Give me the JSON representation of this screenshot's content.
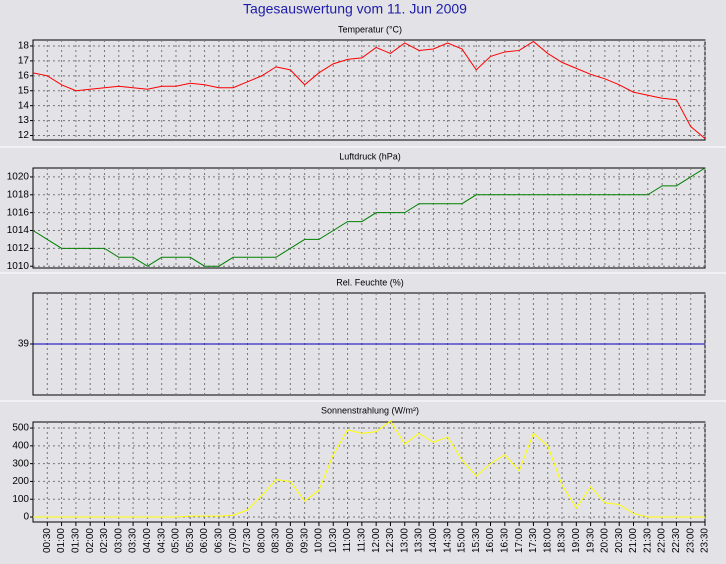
{
  "title": "Tagesauswertung vom 11. Jun 2009",
  "chart_data": [
    {
      "type": "line",
      "title": "Temperatur (°C)",
      "color": "#ff0000",
      "ylim": [
        11.7,
        18.4
      ],
      "yticks": [
        12,
        13,
        14,
        15,
        16,
        17,
        18
      ],
      "grid": true,
      "values": [
        16.2,
        16.0,
        15.4,
        15.0,
        15.1,
        15.2,
        15.3,
        15.2,
        15.1,
        15.3,
        15.3,
        15.5,
        15.4,
        15.2,
        15.2,
        15.6,
        16.0,
        16.6,
        16.4,
        15.4,
        16.2,
        16.8,
        17.1,
        17.2,
        17.9,
        17.5,
        18.2,
        17.7,
        17.8,
        18.2,
        17.8,
        16.4,
        17.3,
        17.6,
        17.7,
        18.3,
        17.5,
        16.9,
        16.5,
        16.1,
        15.8,
        15.4,
        14.9,
        14.7,
        14.5,
        14.4,
        12.6,
        11.8
      ]
    },
    {
      "type": "line",
      "title": "Luftdruck (hPa)",
      "color": "#008000",
      "ylim": [
        1009.8,
        1021
      ],
      "yticks": [
        1010,
        1012,
        1014,
        1016,
        1018,
        1020
      ],
      "grid": true,
      "values": [
        1014,
        1013,
        1012,
        1012,
        1012,
        1012,
        1011,
        1011,
        1010,
        1011,
        1011,
        1011,
        1010,
        1010,
        1011,
        1011,
        1011,
        1011,
        1012,
        1013,
        1013,
        1014,
        1015,
        1015,
        1016,
        1016,
        1016,
        1017,
        1017,
        1017,
        1017,
        1018,
        1018,
        1018,
        1018,
        1018,
        1018,
        1018,
        1018,
        1018,
        1018,
        1018,
        1018,
        1018,
        1019,
        1019,
        1020,
        1021
      ]
    },
    {
      "type": "line",
      "title": "Rel. Feuchte (%)",
      "color": "#0000c0",
      "ylim": [
        34,
        44
      ],
      "yticks": [
        39
      ],
      "grid": true,
      "values": [
        39,
        39,
        39,
        39,
        39,
        39,
        39,
        39,
        39,
        39,
        39,
        39,
        39,
        39,
        39,
        39,
        39,
        39,
        39,
        39,
        39,
        39,
        39,
        39,
        39,
        39,
        39,
        39,
        39,
        39,
        39,
        39,
        39,
        39,
        39,
        39,
        39,
        39,
        39,
        39,
        39,
        39,
        39,
        39,
        39,
        39,
        39,
        39
      ]
    },
    {
      "type": "line",
      "title": "Sonnenstrahlung (W/m²)",
      "color": "#ffff00",
      "ylim": [
        -28,
        534
      ],
      "yticks": [
        0,
        100,
        200,
        300,
        400,
        500
      ],
      "grid": true,
      "categories": [
        null,
        "00:30",
        "01:00",
        "01:30",
        "02:00",
        "02:30",
        "03:00",
        "03:30",
        "04:00",
        "04:30",
        "05:00",
        "05:30",
        "06:00",
        "06:30",
        "07:00",
        "07:30",
        "08:00",
        "08:30",
        "09:00",
        "09:30",
        "10:00",
        "10:30",
        "11:00",
        "11:30",
        "12:00",
        "12:30",
        "13:00",
        "13:30",
        "14:00",
        "14:30",
        "15:00",
        "15:30",
        "16:00",
        "16:30",
        "17:00",
        "17:30",
        "18:00",
        "18:30",
        "19:00",
        "19:30",
        "20:00",
        "20:30",
        "21:00",
        "21:30",
        "22:00",
        "22:30",
        "23:00",
        "23:30"
      ],
      "values": [
        0,
        0,
        0,
        0,
        0,
        0,
        0,
        0,
        0,
        0,
        0,
        5,
        5,
        5,
        10,
        40,
        120,
        210,
        200,
        90,
        150,
        350,
        490,
        470,
        480,
        540,
        410,
        470,
        420,
        450,
        320,
        230,
        300,
        350,
        260,
        470,
        400,
        180,
        50,
        170,
        80,
        70,
        20,
        0,
        0,
        0,
        0,
        0
      ]
    }
  ]
}
